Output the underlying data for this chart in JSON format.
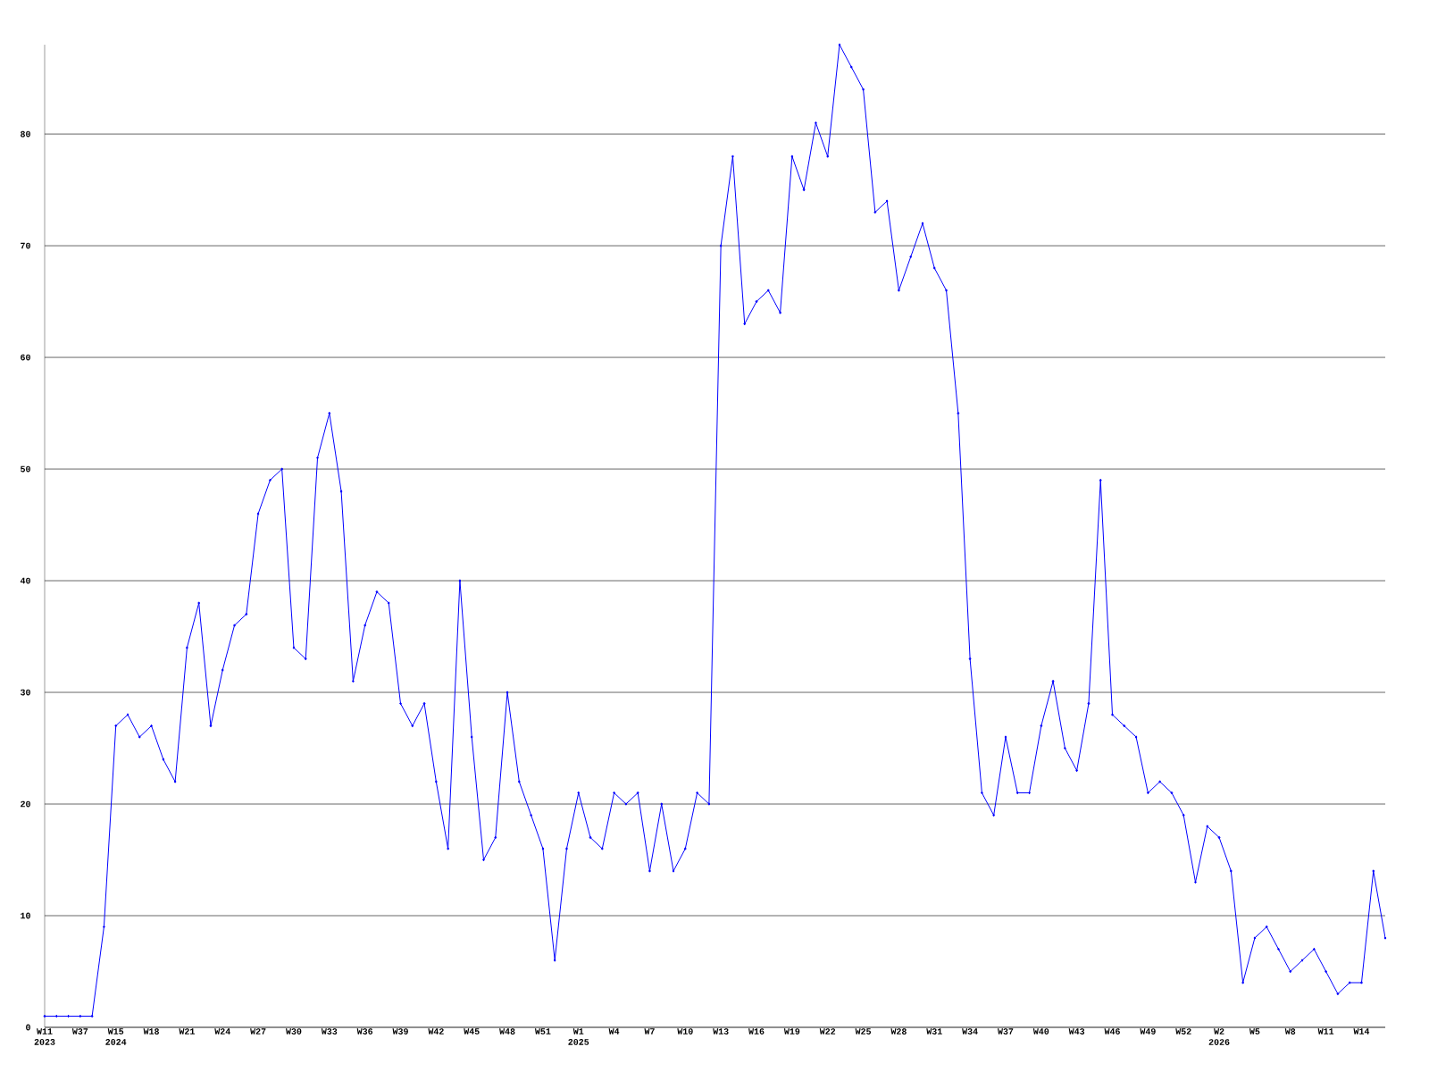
{
  "chart_data": {
    "type": "line",
    "categories": [
      "W11 2023",
      null,
      null,
      "W37",
      null,
      null,
      "W15 2024",
      null,
      null,
      "W18",
      null,
      null,
      "W21",
      null,
      null,
      "W24",
      null,
      null,
      "W27",
      null,
      null,
      "W30",
      null,
      null,
      "W33",
      null,
      null,
      "W36",
      null,
      null,
      "W39",
      null,
      null,
      "W42",
      null,
      null,
      "W45",
      null,
      null,
      "W48",
      null,
      null,
      "W51",
      null,
      null,
      "W1 2025",
      null,
      null,
      "W4",
      null,
      null,
      "W7",
      null,
      null,
      "W10",
      null,
      null,
      "W13",
      null,
      null,
      "W16",
      null,
      null,
      "W19",
      null,
      null,
      "W22",
      null,
      null,
      "W25",
      null,
      null,
      "W28",
      null,
      null,
      "W31",
      null,
      null,
      "W34",
      null,
      null,
      "W37",
      null,
      null,
      "W40",
      null,
      null,
      "W43",
      null,
      null,
      "W46",
      null,
      null,
      "W49",
      null,
      null,
      "W52",
      null,
      null,
      "W2 2026",
      null,
      null,
      "W5",
      null,
      null,
      "W8",
      null,
      null,
      "W11",
      null,
      null,
      "W14",
      null,
      null
    ],
    "values": [
      1,
      1,
      1,
      1,
      1,
      9,
      27,
      28,
      26,
      27,
      24,
      22,
      34,
      38,
      27,
      32,
      36,
      37,
      46,
      49,
      50,
      34,
      33,
      51,
      55,
      48,
      31,
      36,
      39,
      38,
      29,
      27,
      29,
      22,
      16,
      40,
      26,
      15,
      17,
      30,
      22,
      19,
      16,
      6,
      16,
      21,
      17,
      16,
      21,
      20,
      21,
      14,
      20,
      14,
      16,
      21,
      20,
      70,
      78,
      63,
      65,
      66,
      64,
      78,
      75,
      81,
      78,
      88,
      86,
      84,
      73,
      74,
      66,
      69,
      72,
      68,
      66,
      55,
      33,
      21,
      19,
      26,
      21,
      21,
      27,
      31,
      25,
      23,
      29,
      49,
      28,
      27,
      26,
      21,
      22,
      21,
      19,
      13,
      18,
      17,
      14,
      4,
      8,
      9,
      7,
      5,
      6,
      7,
      5,
      3,
      4,
      4,
      14,
      8
    ],
    "color": "#0000ff",
    "ylim": [
      0,
      88
    ],
    "yticks": [
      0,
      10,
      20,
      30,
      40,
      50,
      60,
      70,
      80
    ],
    "grid": "y",
    "marker": "diamond",
    "line_style": "solid"
  }
}
